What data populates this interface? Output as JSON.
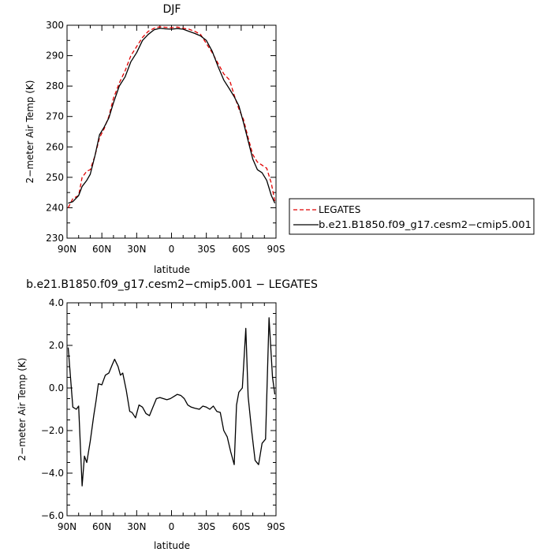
{
  "chart_data": [
    {
      "type": "line",
      "title": "DJF",
      "xlabel": "latitude",
      "ylabel": "2−meter Air Temp (K)",
      "ylim": [
        230,
        300
      ],
      "xlim": [
        -90,
        90
      ],
      "x_ticks": [
        -90,
        -60,
        -30,
        0,
        30,
        60,
        90
      ],
      "x_tick_labels": [
        "90N",
        "60N",
        "30N",
        "0",
        "30S",
        "60S",
        "90S"
      ],
      "y_ticks": [
        230,
        240,
        250,
        260,
        270,
        280,
        290,
        300
      ],
      "y_tick_labels": [
        "230",
        "240",
        "250",
        "260",
        "270",
        "280",
        "290",
        "300"
      ],
      "legend_placement": "right",
      "series": [
        {
          "name": "LEGATES",
          "color": "#e00000",
          "dash": "dashed",
          "x": [
            -89,
            -85,
            -80,
            -77,
            -73,
            -70,
            -66,
            -62,
            -58,
            -54,
            -50,
            -45,
            -40,
            -35,
            -30,
            -25,
            -20,
            -15,
            -10,
            -5,
            0,
            5,
            10,
            15,
            20,
            25,
            30,
            35,
            40,
            45,
            50,
            54,
            58,
            62,
            66,
            70,
            74,
            78,
            82,
            86,
            89
          ],
          "values": [
            240,
            243,
            244,
            250,
            252,
            252.5,
            257,
            263,
            266,
            270,
            276,
            281,
            285,
            290,
            293,
            296,
            298,
            299,
            299.5,
            299.3,
            299.2,
            299.4,
            299,
            298.7,
            298,
            297,
            294,
            291,
            287.5,
            284,
            282,
            277,
            272.5,
            269,
            263,
            257.5,
            255,
            254,
            253,
            248,
            242
          ]
        },
        {
          "name": "b.e21.B1850.f09_g17.cesm2−cmip5.001",
          "color": "#000000",
          "dash": "solid",
          "x": [
            -89,
            -85,
            -80,
            -77,
            -73,
            -70,
            -66,
            -62,
            -58,
            -54,
            -50,
            -45,
            -40,
            -35,
            -30,
            -25,
            -20,
            -15,
            -10,
            -5,
            0,
            5,
            10,
            15,
            20,
            25,
            30,
            35,
            40,
            45,
            50,
            54,
            58,
            62,
            66,
            70,
            74,
            78,
            82,
            86,
            89
          ],
          "values": [
            241.5,
            242,
            244,
            247,
            249,
            251,
            257,
            264,
            266.5,
            269.5,
            274.5,
            280,
            283,
            288,
            291,
            295,
            297,
            298.5,
            299,
            298.8,
            298.7,
            298.9,
            298.7,
            298,
            297.3,
            296.5,
            295,
            291.5,
            286.5,
            282,
            279,
            276.5,
            273.5,
            268,
            262,
            256,
            252.5,
            251.5,
            249,
            244,
            241.5
          ]
        }
      ]
    },
    {
      "type": "line",
      "title": "b.e21.B1850.f09_g17.cesm2−cmip5.001 − LEGATES",
      "xlabel": "latitude",
      "ylabel": "2−meter Air Temp (K)",
      "ylim": [
        -6,
        4
      ],
      "xlim": [
        -90,
        90
      ],
      "x_ticks": [
        -90,
        -60,
        -30,
        0,
        30,
        60,
        90
      ],
      "x_tick_labels": [
        "90N",
        "60N",
        "30N",
        "0",
        "30S",
        "60S",
        "90S"
      ],
      "y_ticks": [
        -6,
        -4,
        -2,
        0,
        2,
        4
      ],
      "y_tick_labels": [
        "−6.0",
        "−4.0",
        "−2.0",
        "0.0",
        "2.0",
        "4.0"
      ],
      "series": [
        {
          "color": "#000000",
          "dash": "solid",
          "x": [
            -89,
            -85,
            -82,
            -80,
            -77,
            -75,
            -73,
            -70,
            -67,
            -65,
            -63,
            -60,
            -57,
            -54,
            -51,
            -49,
            -46,
            -44,
            -42,
            -39,
            -36,
            -34,
            -31,
            -28,
            -25,
            -22,
            -19,
            -16,
            -13,
            -10,
            -7,
            -4,
            -1,
            2,
            5,
            8,
            11,
            14,
            17,
            20,
            24,
            27,
            30,
            33,
            36,
            39,
            42,
            45,
            48,
            51,
            54,
            56,
            58,
            61,
            64,
            66,
            69,
            72,
            75,
            78,
            81,
            84,
            87,
            89
          ],
          "values": [
            1.9,
            -0.9,
            -1.0,
            -0.85,
            -4.6,
            -3.2,
            -3.5,
            -2.5,
            -1.3,
            -0.6,
            0.2,
            0.15,
            0.6,
            0.7,
            1.1,
            1.35,
            1.0,
            0.6,
            0.7,
            -0.1,
            -1.1,
            -1.15,
            -1.4,
            -0.8,
            -0.9,
            -1.2,
            -1.3,
            -0.9,
            -0.5,
            -0.45,
            -0.5,
            -0.55,
            -0.5,
            -0.4,
            -0.3,
            -0.35,
            -0.5,
            -0.8,
            -0.9,
            -0.95,
            -1.0,
            -0.85,
            -0.9,
            -1.0,
            -0.85,
            -1.1,
            -1.15,
            -2.0,
            -2.3,
            -3.0,
            -3.6,
            -0.8,
            -0.2,
            0.0,
            2.8,
            -0.4,
            -2.0,
            -3.4,
            -3.6,
            -2.6,
            -2.4,
            3.3,
            0.5,
            -0.3
          ]
        }
      ]
    }
  ]
}
